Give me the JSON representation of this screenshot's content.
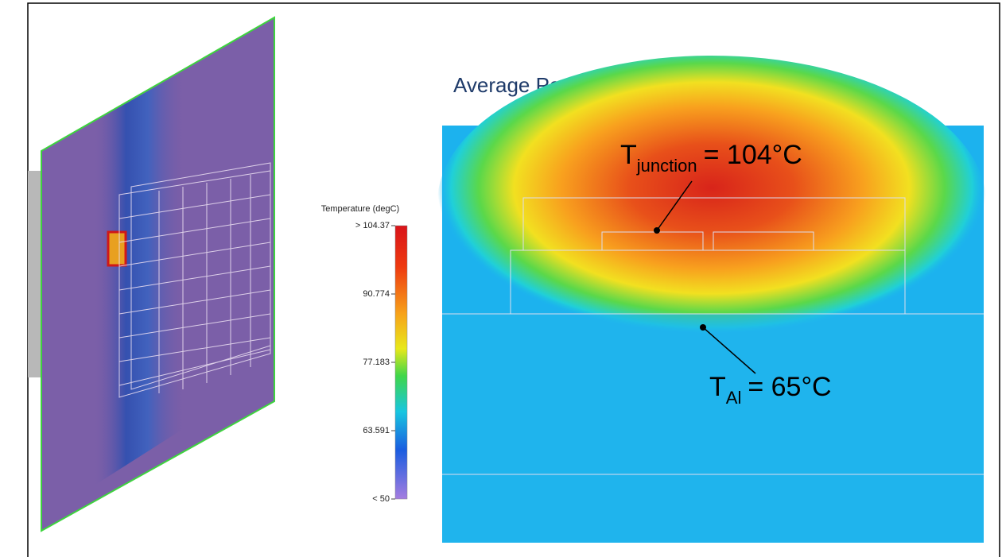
{
  "title": "Average Power Dissipation",
  "colorbar": {
    "label": "Temperature (degC)",
    "ticks": [
      "> 104.37",
      "90.774",
      "77.183",
      "63.591",
      "< 50"
    ]
  },
  "annotations": [
    {
      "symbol": "T",
      "subscript": "junction",
      "text": "= 104°C"
    },
    {
      "symbol": "T",
      "subscript": "Al",
      "text": "= 65°C"
    }
  ]
}
